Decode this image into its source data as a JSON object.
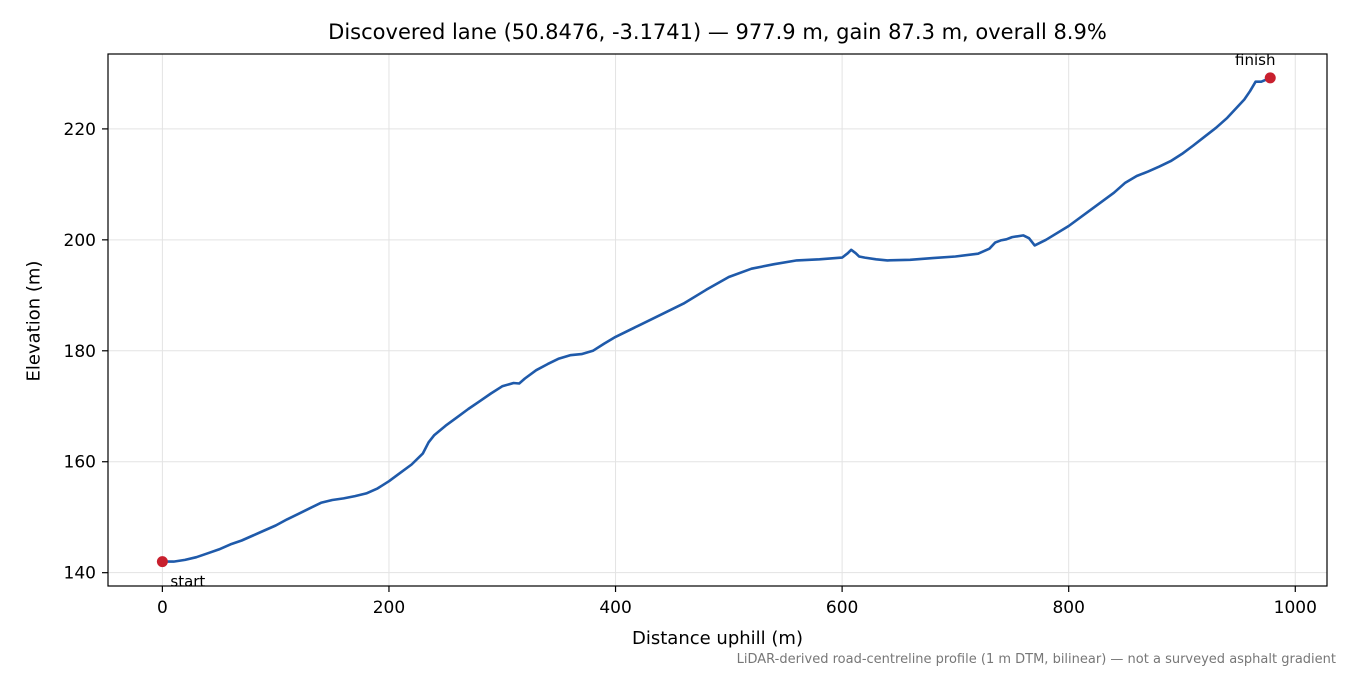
{
  "chart_data": {
    "type": "line",
    "title": "Discovered lane (50.8476, -3.1741) — 977.9 m, gain 87.3 m, overall 8.9%",
    "xlabel": "Distance uphill (m)",
    "ylabel": "Elevation (m)",
    "xlim": [
      -48,
      1028
    ],
    "ylim": [
      137.6,
      233.5
    ],
    "xticks": [
      0,
      200,
      400,
      600,
      800,
      1000
    ],
    "yticks": [
      140,
      160,
      180,
      200,
      220
    ],
    "grid": true,
    "line_color": "#1f5aaa",
    "marker_color": "#c8202e",
    "series": [
      {
        "x": [
          0,
          10,
          20,
          30,
          40,
          50,
          60,
          70,
          80,
          90,
          100,
          110,
          120,
          130,
          140,
          150,
          160,
          170,
          180,
          190,
          200,
          210,
          220,
          230,
          235,
          240,
          250,
          260,
          270,
          280,
          290,
          300,
          310,
          315,
          320,
          330,
          340,
          350,
          360,
          370,
          380,
          390,
          400,
          420,
          440,
          460,
          480,
          500,
          520,
          540,
          560,
          580,
          600,
          605,
          608,
          612,
          615,
          620,
          630,
          640,
          660,
          680,
          700,
          720,
          730,
          735,
          740,
          745,
          750,
          760,
          765,
          770,
          780,
          800,
          820,
          840,
          850,
          860,
          870,
          880,
          890,
          900,
          910,
          920,
          930,
          940,
          950,
          955,
          960,
          965,
          970,
          977.9
        ],
        "y": [
          142,
          142,
          142.3,
          142.8,
          143.5,
          144.2,
          145.1,
          145.8,
          146.7,
          147.6,
          148.5,
          149.6,
          150.6,
          151.6,
          152.6,
          153.1,
          153.4,
          153.8,
          154.3,
          155.2,
          156.5,
          158,
          159.5,
          161.5,
          163.5,
          164.8,
          166.5,
          168,
          169.5,
          170.9,
          172.3,
          173.6,
          174.2,
          174.1,
          175,
          176.5,
          177.6,
          178.6,
          179.2,
          179.4,
          180,
          181.3,
          182.5,
          184.5,
          186.5,
          188.5,
          191,
          193.3,
          194.8,
          195.6,
          196.3,
          196.5,
          196.8,
          197.6,
          198.2,
          197.6,
          197,
          196.8,
          196.5,
          196.3,
          196.4,
          196.7,
          197,
          197.5,
          198.4,
          199.5,
          199.9,
          200.1,
          200.5,
          200.8,
          200.3,
          199,
          200,
          202.5,
          205.5,
          208.5,
          210.3,
          211.5,
          212.3,
          213.2,
          214.2,
          215.5,
          217,
          218.6,
          220.2,
          222,
          224.2,
          225.3,
          226.8,
          228.5,
          228.5,
          229.2
        ]
      }
    ],
    "annotations": [
      {
        "text": "start",
        "x": 0,
        "y": 142
      },
      {
        "text": "finish",
        "x": 977.9,
        "y": 229.2
      }
    ],
    "footnote": "LiDAR-derived road-centreline profile (1 m DTM, bilinear) — not a surveyed asphalt gradient"
  }
}
